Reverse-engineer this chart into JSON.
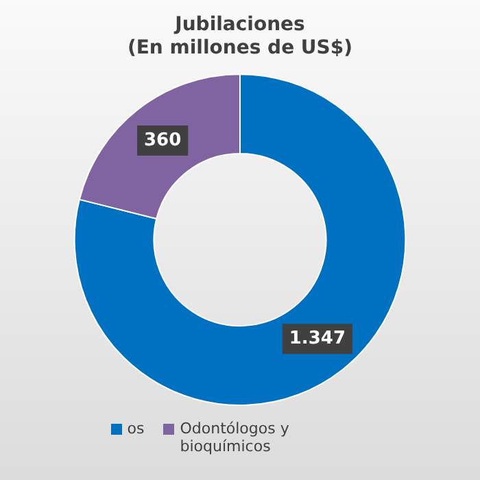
{
  "chart_data": {
    "type": "donut",
    "title": [
      "Jubilaciones",
      "(En millones de US$)"
    ],
    "categories": [
      "os",
      "Odontólogos y bioquímicos"
    ],
    "values": [
      1347,
      360
    ],
    "value_labels": [
      "1.347",
      "360"
    ],
    "colors": [
      "#0070c0",
      "#8064a2"
    ],
    "legend": "bottom"
  }
}
